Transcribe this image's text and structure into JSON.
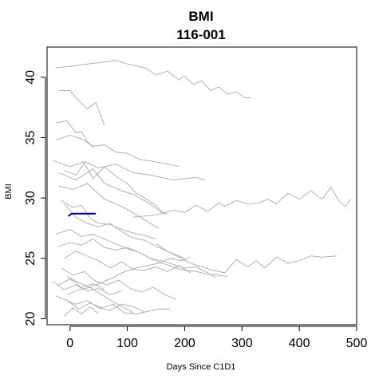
{
  "chart_data": {
    "type": "line",
    "title": "BMI",
    "subtitle": "116-001",
    "xlabel": "Days Since C1D1",
    "ylabel": "BMI",
    "xlim": [
      -40,
      500
    ],
    "ylim": [
      19.5,
      42.5
    ],
    "x_ticks": [
      0,
      100,
      200,
      300,
      400,
      500
    ],
    "y_ticks": [
      20,
      25,
      30,
      35,
      40
    ],
    "grid": false,
    "legend": "none",
    "colors": {
      "highlight": "#000080",
      "background": "#b0b0b0"
    },
    "highlight": {
      "name": "116-001",
      "x": [
        -3,
        3,
        15,
        30,
        45
      ],
      "y": [
        28.5,
        28.7,
        28.7,
        28.7,
        28.7
      ]
    },
    "series": [
      {
        "x": [
          -25,
          0,
          30,
          50,
          80,
          100,
          130,
          150,
          170,
          190,
          200,
          215,
          230,
          245,
          260,
          275,
          290,
          305,
          315
        ],
        "y": [
          40.8,
          40.9,
          41.1,
          41.2,
          41.4,
          41.1,
          40.8,
          40.2,
          40.5,
          39.8,
          40.1,
          39.4,
          39.7,
          38.9,
          39.2,
          38.6,
          38.8,
          38.3,
          38.3
        ]
      },
      {
        "x": [
          -20,
          0,
          15,
          30,
          45,
          60
        ],
        "y": [
          38.9,
          38.9,
          38.1,
          37.4,
          37.9,
          36.0
        ]
      },
      {
        "x": [
          -25,
          -5,
          10,
          20,
          30,
          40
        ],
        "y": [
          36.2,
          36.4,
          35.4,
          35.5,
          34.7,
          34.2
        ]
      },
      {
        "x": [
          -25,
          0,
          20,
          40,
          60,
          80,
          100,
          120,
          150,
          190
        ],
        "y": [
          34.8,
          35.2,
          34.9,
          34.3,
          34.4,
          33.8,
          33.7,
          33.2,
          33.0,
          32.6
        ]
      },
      {
        "x": [
          -30,
          0,
          25,
          50,
          80,
          110,
          140,
          180,
          220,
          235
        ],
        "y": [
          33.1,
          32.6,
          33.0,
          32.5,
          32.8,
          32.1,
          31.9,
          31.5,
          31.7,
          31.5
        ]
      },
      {
        "x": [
          -10,
          10,
          25,
          40,
          60,
          80,
          100,
          115,
          130,
          150,
          165
        ],
        "y": [
          32.3,
          31.9,
          32.9,
          31.6,
          32.6,
          31.8,
          31.2,
          30.4,
          30.0,
          29.4,
          28.6
        ]
      },
      {
        "x": [
          -20,
          10,
          40,
          60,
          90,
          110,
          140,
          160,
          170
        ],
        "y": [
          32.1,
          31.5,
          32.4,
          31.2,
          30.6,
          30.3,
          29.5,
          28.8,
          28.7
        ]
      },
      {
        "x": [
          -20,
          5,
          30,
          60,
          90,
          120,
          140,
          155
        ],
        "y": [
          31.0,
          30.7,
          31.2,
          29.9,
          29.3,
          28.5,
          27.9,
          27.5
        ]
      },
      {
        "x": [
          110,
          150,
          180,
          200,
          220,
          240,
          260,
          270,
          290,
          310,
          330,
          345,
          360,
          380,
          400,
          420,
          440,
          455,
          470,
          480,
          490
        ],
        "y": [
          28.4,
          28.6,
          29.0,
          28.8,
          29.4,
          28.9,
          29.6,
          29.3,
          29.8,
          29.5,
          29.6,
          29.9,
          29.5,
          30.4,
          29.9,
          30.6,
          29.9,
          30.9,
          29.7,
          29.3,
          29.9
        ]
      },
      {
        "x": [
          -15,
          5,
          20,
          35,
          50,
          70,
          90,
          110,
          130,
          150
        ],
        "y": [
          29.8,
          29.2,
          29.4,
          28.3,
          27.9,
          27.8,
          27.4,
          27.1,
          26.9,
          26.6
        ]
      },
      {
        "x": [
          -10,
          10,
          30,
          50,
          70,
          90,
          110,
          130,
          150,
          170,
          200
        ],
        "y": [
          29.5,
          28.4,
          27.9,
          27.6,
          27.9,
          27.2,
          26.7,
          26.5,
          26.0,
          25.6,
          25.0
        ]
      },
      {
        "x": [
          -25,
          0,
          20,
          40,
          60,
          80,
          100,
          120,
          140,
          160,
          180,
          200,
          220,
          240,
          260,
          275
        ],
        "y": [
          27.0,
          27.4,
          26.8,
          27.0,
          26.6,
          26.2,
          25.8,
          25.5,
          25.0,
          24.6,
          24.3,
          24.0,
          23.9,
          23.7,
          23.6,
          23.5
        ]
      },
      {
        "x": [
          -20,
          0,
          20,
          40,
          60,
          80,
          100,
          120,
          140,
          160,
          180,
          200,
          220,
          240,
          255
        ],
        "y": [
          26.0,
          26.3,
          26.1,
          26.6,
          25.9,
          25.7,
          25.9,
          25.5,
          25.0,
          24.8,
          24.5,
          24.2,
          24.3,
          23.8,
          23.4
        ]
      },
      {
        "x": [
          150,
          170,
          190,
          210,
          230,
          250,
          270,
          290,
          310,
          325,
          340,
          360,
          380,
          400,
          420,
          440,
          465
        ],
        "y": [
          26.2,
          25.6,
          25.1,
          24.6,
          24.3,
          24.0,
          23.8,
          24.9,
          24.3,
          24.8,
          24.2,
          25.1,
          24.6,
          24.8,
          25.2,
          25.1,
          25.2
        ]
      },
      {
        "x": [
          -10,
          10,
          30,
          50,
          70,
          90,
          110,
          130,
          150,
          170,
          190,
          210
        ],
        "y": [
          25.0,
          25.6,
          25.2,
          24.8,
          24.2,
          24.7,
          24.1,
          24.0,
          24.3,
          23.9,
          24.4,
          23.8
        ]
      },
      {
        "x": [
          -15,
          5,
          25,
          45,
          65,
          85,
          105,
          125,
          145,
          165,
          185
        ],
        "y": [
          24.2,
          23.6,
          23.9,
          23.1,
          22.8,
          23.2,
          22.5,
          22.2,
          22.6,
          22.0,
          21.6
        ]
      },
      {
        "x": [
          -30,
          -10,
          10,
          30,
          50,
          70,
          90
        ],
        "y": [
          23.1,
          22.4,
          22.8,
          22.3,
          22.5,
          22.0,
          22.3
        ]
      },
      {
        "x": [
          -20,
          0,
          20,
          40,
          60
        ],
        "y": [
          22.8,
          23.3,
          22.6,
          22.9,
          22.4
        ]
      },
      {
        "x": [
          -5,
          15,
          35,
          55,
          75,
          95,
          115,
          135,
          155,
          175,
          195,
          210
        ],
        "y": [
          22.0,
          22.4,
          22.6,
          23.0,
          23.4,
          23.9,
          24.2,
          24.4,
          24.6,
          25.0,
          24.8,
          25.1
        ]
      },
      {
        "x": [
          -10,
          10,
          30,
          50,
          70,
          90,
          110,
          130
        ],
        "y": [
          21.6,
          21.2,
          21.5,
          20.9,
          20.7,
          21.2,
          21.0,
          20.6
        ]
      },
      {
        "x": [
          -25,
          -5,
          15,
          35,
          55,
          75,
          95,
          115,
          135,
          155,
          175
        ],
        "y": [
          21.9,
          21.5,
          20.8,
          21.3,
          20.9,
          21.2,
          20.5,
          20.4,
          20.6,
          20.8,
          20.8
        ]
      },
      {
        "x": [
          -10,
          5,
          20,
          35,
          50
        ],
        "y": [
          20.2,
          20.9,
          20.4,
          21.0,
          20.4
        ]
      },
      {
        "x": [
          -5,
          15,
          35,
          55,
          75,
          95,
          110
        ],
        "y": [
          23.5,
          23.0,
          22.6,
          22.0,
          21.4,
          20.9,
          20.5
        ]
      }
    ]
  }
}
